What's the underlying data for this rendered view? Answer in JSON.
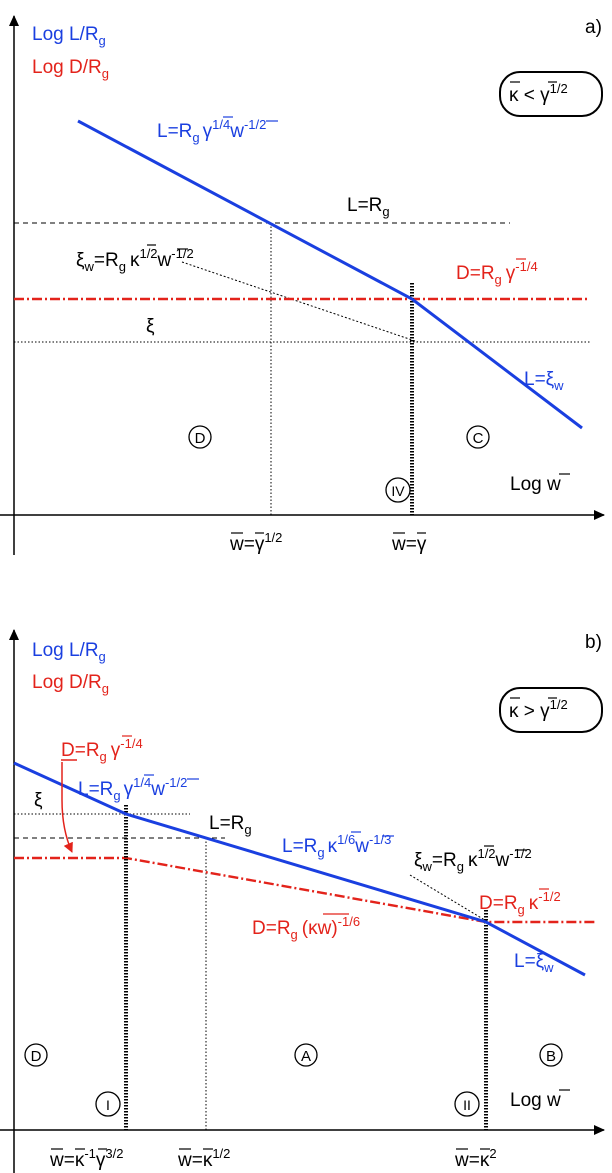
{
  "colors": {
    "blue": "#1a3fe0",
    "red": "#e3231b",
    "black": "#000000"
  },
  "panel_a": {
    "tag": "a)",
    "ylabel_L": "Log L/R",
    "ylabel_L_sub": "g",
    "ylabel_D": "Log D/R",
    "ylabel_D_sub": "g",
    "condition": "κ < γ",
    "condition_exp": "1/2",
    "lbl_L_main": "L=R",
    "lbl_L_sub": "g",
    "lbl_L_exp1": "1/4",
    "lbl_L_w": "w",
    "lbl_L_exp2": "-1/2",
    "lbl_L_gamma": "γ",
    "lbl_LRg": "L=R",
    "lbl_LRg_sub": "g",
    "lbl_xiw": "ξ",
    "lbl_xiw_sub": "w",
    "lbl_xiw_eq": "=R",
    "lbl_xiw_g": "g",
    "lbl_xiw_kappa": "κ",
    "lbl_xiw_exp1": "1/2",
    "lbl_xiw_w": "w",
    "lbl_xiw_exp2": "-1/2",
    "lbl_D": "D=R",
    "lbl_D_sub": "g",
    "lbl_D_gamma": "γ",
    "lbl_D_exp": "-1/4",
    "lbl_xi": "ξ",
    "lbl_Lxi": "L=ξ",
    "lbl_Lxi_sub": "w",
    "region_D": "D",
    "region_C": "C",
    "region_IV": "IV",
    "xlabel": "Log w",
    "tick1": "w=γ",
    "tick1_exp": "1/2",
    "tick2": "w=γ"
  },
  "panel_b": {
    "tag": "b)",
    "ylabel_L": "Log L/R",
    "ylabel_L_sub": "g",
    "ylabel_D": "Log D/R",
    "ylabel_D_sub": "g",
    "condition": "κ > γ",
    "condition_exp": "1/2",
    "lbl_Dg": "D=R",
    "lbl_Dg_sub": "g",
    "lbl_Dg_gamma": "γ",
    "lbl_Dg_exp": "-1/4",
    "lbl_L1": "L=R",
    "lbl_L1_sub": "g",
    "lbl_L1_gamma": "γ",
    "lbl_L1_exp1": "1/4",
    "lbl_L1_w": "w",
    "lbl_L1_exp2": "-1/2",
    "lbl_xi": "ξ",
    "lbl_LRg": "L=R",
    "lbl_LRg_sub": "g",
    "lbl_L2": "L=R",
    "lbl_L2_sub": "g",
    "lbl_L2_kappa": "κ",
    "lbl_L2_exp1": "1/6",
    "lbl_L2_w": "w",
    "lbl_L2_exp2": "-1/3",
    "lbl_xiw": "ξ",
    "lbl_xiw_sub": "w",
    "lbl_xiw_eq": "=R",
    "lbl_xiw_g": "g",
    "lbl_xiw_kappa": "κ",
    "lbl_xiw_exp1": "1/2",
    "lbl_xiw_w": "w",
    "lbl_xiw_exp2": "-1/2",
    "lbl_D2": "D=R",
    "lbl_D2_sub": "g",
    "lbl_D2_kappa": "κ",
    "lbl_D2_exp": "-1/2",
    "lbl_D3": "D=R",
    "lbl_D3_sub": "g",
    "lbl_D3_arg": "(κw)",
    "lbl_D3_exp": "-1/6",
    "lbl_Lxi": "L=ξ",
    "lbl_Lxi_sub": "w",
    "region_D": "D",
    "region_A": "A",
    "region_B": "B",
    "region_I": "I",
    "region_II": "II",
    "xlabel": "Log w",
    "tick1": "w=κ",
    "tick1_exp1": "-1",
    "tick1_gamma": "γ",
    "tick1_exp2": "3/2",
    "tick2": "w=κ",
    "tick2_exp": "1/2",
    "tick3": "w=κ",
    "tick3_exp": "2"
  }
}
